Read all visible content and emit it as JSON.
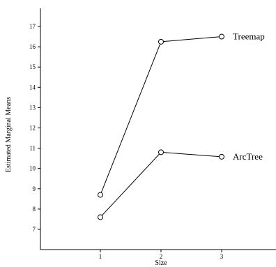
{
  "chart_data": {
    "type": "line",
    "xlabel": "Size",
    "ylabel": "Estimated Marginal Means",
    "x": [
      1,
      2,
      3
    ],
    "x_ticks": [
      1,
      2,
      3
    ],
    "y_ticks": [
      7,
      8,
      9,
      10,
      11,
      12,
      13,
      14,
      15,
      16,
      17
    ],
    "xlim": [
      0,
      4
    ],
    "ylim": [
      6,
      17.9
    ],
    "grid": false,
    "legend": "labels at line ends",
    "series": [
      {
        "name": "Treemap",
        "values": [
          8.7,
          16.25,
          16.5
        ]
      },
      {
        "name": "ArcTree",
        "values": [
          7.6,
          10.8,
          10.58
        ]
      }
    ]
  }
}
